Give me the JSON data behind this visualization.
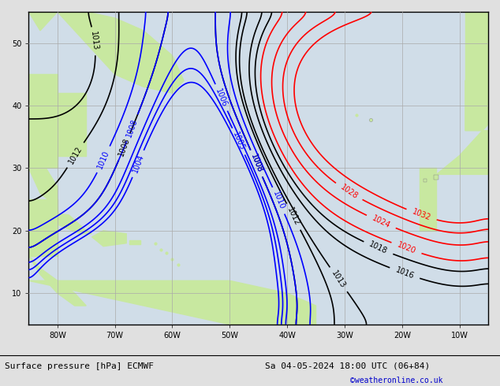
{
  "title": "Surface pressure [hPa] ECMWF",
  "subtitle": "Sa 04-05-2024 18:00 UTC (06+84)",
  "credit": "©weatheronline.co.uk",
  "background_color": "#d0dde8",
  "land_color": "#c8e8a0",
  "grid_color": "#aaaaaa",
  "figsize": [
    6.34,
    4.9
  ],
  "dpi": 100,
  "xlim": [
    -85,
    -5
  ],
  "ylim": [
    5,
    55
  ],
  "xticks": [
    -80,
    -70,
    -60,
    -50,
    -40,
    -30,
    -20,
    -10
  ],
  "yticks": [
    10,
    20,
    30,
    40,
    50
  ],
  "bottom_bar_color": "#e0e0e0",
  "bottom_text_color": "#000000",
  "credit_color": "#0000cc"
}
